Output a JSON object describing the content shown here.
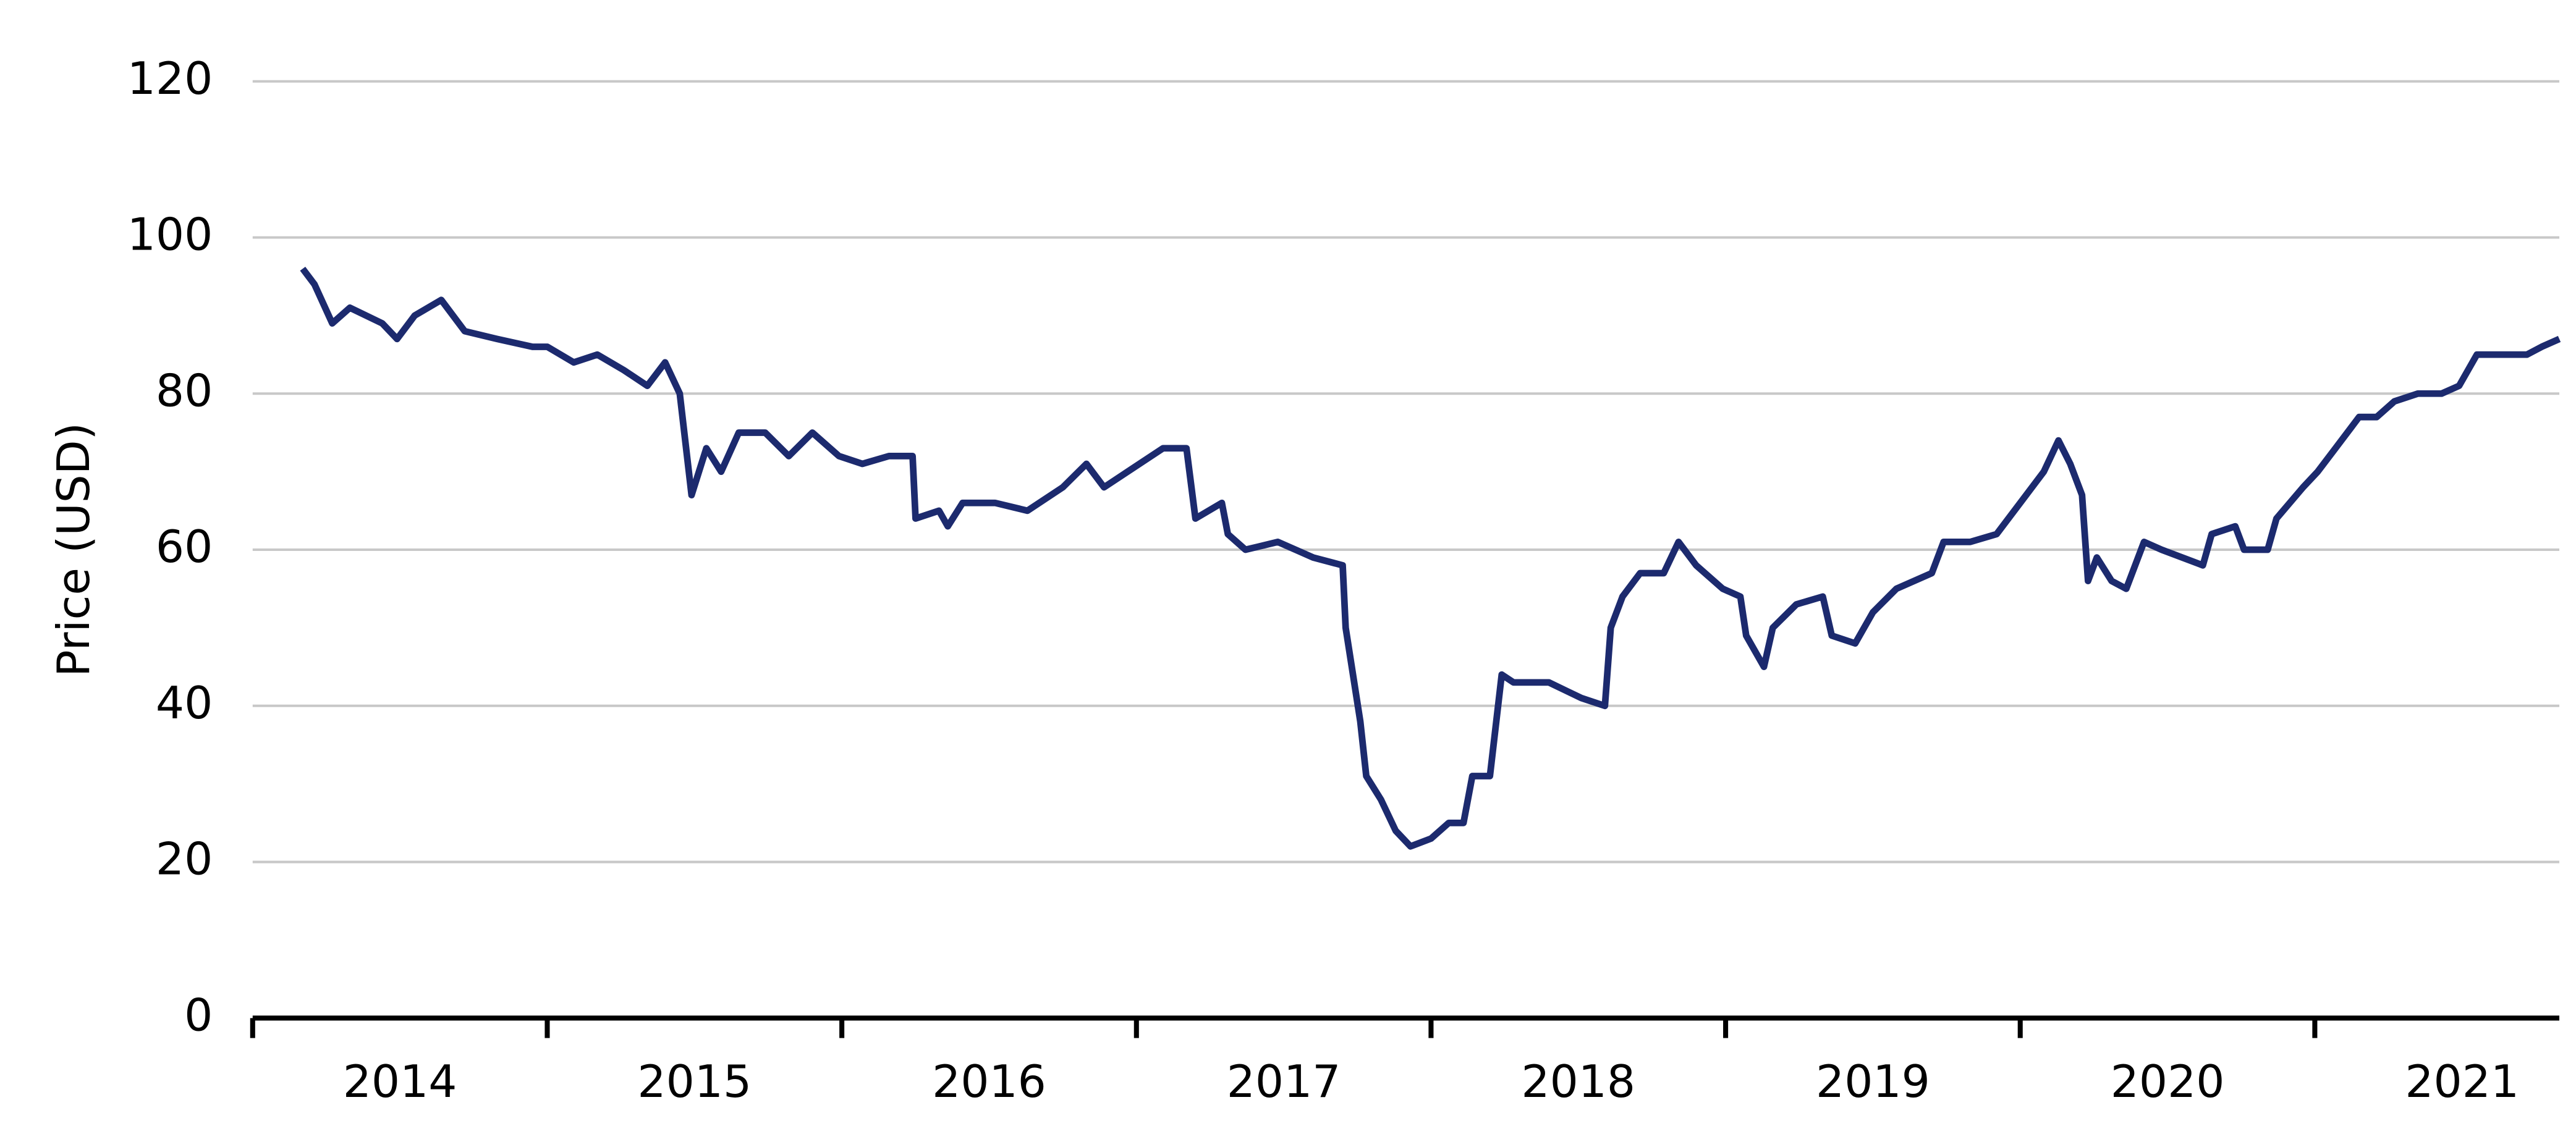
{
  "chart_data": {
    "type": "line",
    "y_label": "Price (USD)",
    "ylim": [
      0,
      120
    ],
    "yticks": [
      0,
      20,
      40,
      60,
      80,
      100,
      120
    ],
    "xlim": [
      2014,
      2021.83
    ],
    "xticks": [
      2014,
      2015,
      2016,
      2017,
      2018,
      2019,
      2020,
      2021
    ],
    "grid": true,
    "series": [
      {
        "color": "#1c2a6e",
        "x": [
          2014.17,
          2014.21,
          2014.27,
          2014.33,
          2014.44,
          2014.49,
          2014.55,
          2014.64,
          2014.72,
          2014.83,
          2014.95,
          2015.0,
          2015.09,
          2015.17,
          2015.26,
          2015.34,
          2015.4,
          2015.45,
          2015.49,
          2015.54,
          2015.59,
          2015.65,
          2015.74,
          2015.82,
          2015.9,
          2015.99,
          2016.07,
          2016.16,
          2016.24,
          2016.25,
          2016.33,
          2016.36,
          2016.41,
          2016.52,
          2016.63,
          2016.75,
          2016.83,
          2016.89,
          2016.97,
          2017.09,
          2017.17,
          2017.2,
          2017.29,
          2017.31,
          2017.37,
          2017.48,
          2017.6,
          2017.7,
          2017.71,
          2017.76,
          2017.78,
          2017.83,
          2017.88,
          2017.93,
          2018.0,
          2018.06,
          2018.11,
          2018.14,
          2018.2,
          2018.24,
          2018.28,
          2018.4,
          2018.51,
          2018.59,
          2018.61,
          2018.65,
          2018.71,
          2018.79,
          2018.84,
          2018.9,
          2018.99,
          2019.05,
          2019.07,
          2019.13,
          2019.16,
          2019.24,
          2019.33,
          2019.36,
          2019.44,
          2019.5,
          2019.58,
          2019.7,
          2019.74,
          2019.83,
          2019.92,
          2020.0,
          2020.08,
          2020.13,
          2020.17,
          2020.21,
          2020.23,
          2020.26,
          2020.31,
          2020.36,
          2020.42,
          2020.48,
          2020.62,
          2020.65,
          2020.73,
          2020.76,
          2020.84,
          2020.87,
          2020.96,
          2021.01,
          2021.07,
          2021.15,
          2021.21,
          2021.27,
          2021.35,
          2021.43,
          2021.49,
          2021.55,
          2021.63,
          2021.72,
          2021.77,
          2021.83
        ],
        "values": [
          96,
          94,
          89,
          91,
          89,
          87,
          90,
          92,
          88,
          87,
          86,
          86,
          84,
          85,
          83,
          81,
          84,
          80,
          67,
          73,
          70,
          75,
          75,
          72,
          75,
          72,
          71,
          72,
          72,
          64,
          65,
          63,
          66,
          66,
          65,
          68,
          71,
          68,
          70,
          73,
          73,
          64,
          66,
          62,
          60,
          61,
          59,
          58,
          50,
          38,
          31,
          28,
          24,
          22,
          23,
          25,
          25,
          31,
          31,
          44,
          43,
          43,
          41,
          40,
          50,
          54,
          57,
          57,
          61,
          58,
          55,
          54,
          49,
          45,
          50,
          53,
          54,
          49,
          48,
          52,
          55,
          57,
          61,
          61,
          62,
          66,
          70,
          74,
          71,
          67,
          56,
          59,
          56,
          55,
          61,
          60,
          58,
          62,
          63,
          60,
          60,
          64,
          68,
          70,
          73,
          77,
          77,
          79,
          80,
          80,
          81,
          85,
          85,
          85,
          86,
          87
        ]
      }
    ]
  }
}
